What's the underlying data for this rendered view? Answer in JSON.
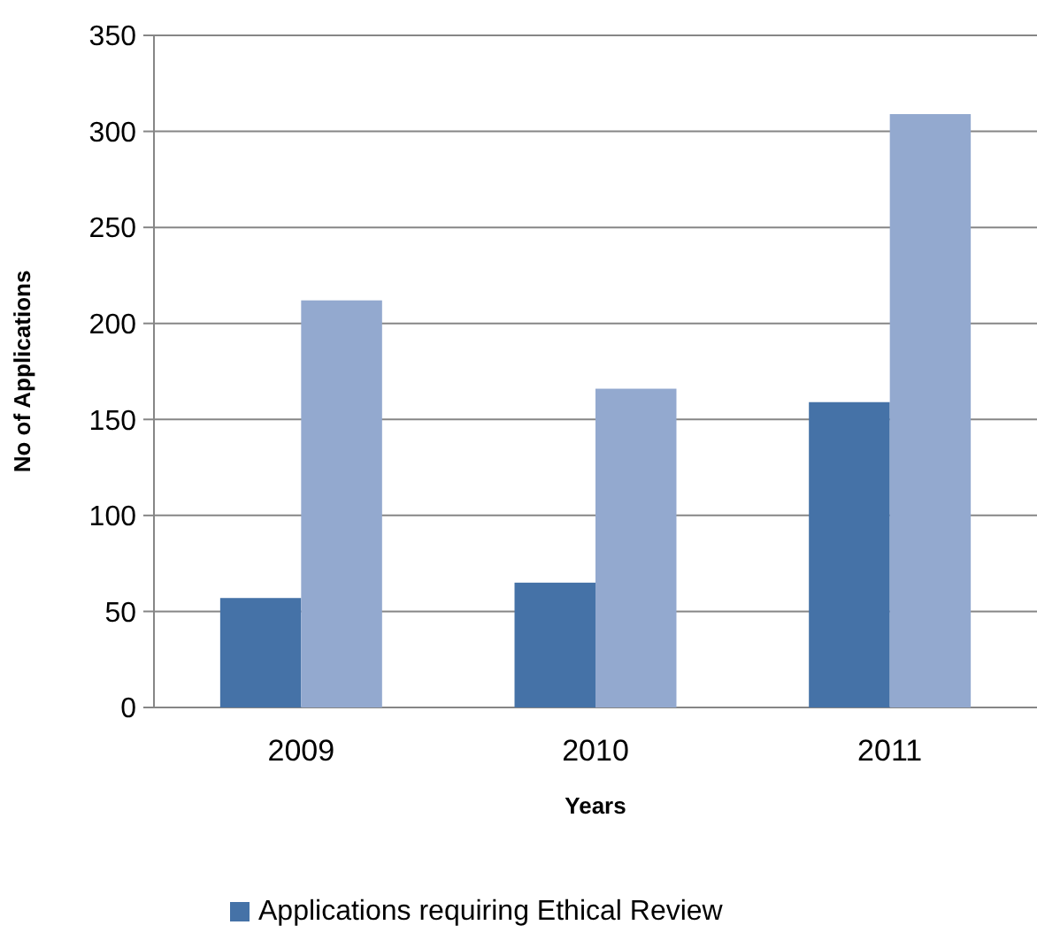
{
  "chart_data": {
    "type": "bar",
    "xlabel": "Years",
    "ylabel": "No of Applications",
    "categories": [
      "2009",
      "2010",
      "2011"
    ],
    "series": [
      {
        "name": "Applications requiring Ethical Review",
        "color": "#4572a7",
        "values": [
          57,
          65,
          159
        ]
      },
      {
        "color": "#93a9cf",
        "values": [
          212,
          166,
          309
        ]
      }
    ],
    "ylim": [
      0,
      350
    ],
    "yticks": [
      0,
      50,
      100,
      150,
      200,
      250,
      300,
      350
    ],
    "grid": "y",
    "legend": "bottom"
  }
}
